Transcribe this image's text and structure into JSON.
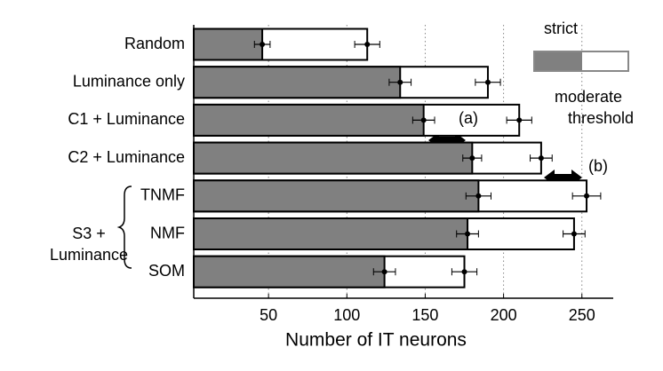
{
  "chart_data": {
    "type": "bar",
    "orientation": "horizontal",
    "xlabel": "Number of  IT neurons",
    "categories": [
      "Random",
      "Luminance only",
      "C1 + Luminance",
      "C2 + Luminance",
      "TNMF",
      "NMF",
      "SOM"
    ],
    "group_label": [
      "S3 +",
      "Luminance"
    ],
    "series": [
      {
        "name": "moderate threshold",
        "color": "#ffffff",
        "values": [
          113,
          190,
          210,
          224,
          253,
          245,
          175
        ],
        "errors": [
          8,
          8,
          8,
          7,
          9,
          7,
          8
        ]
      },
      {
        "name": "strict",
        "color": "#808080",
        "values": [
          46,
          134,
          149,
          180,
          184,
          177,
          124
        ],
        "errors": [
          5,
          7,
          7,
          6,
          8,
          7,
          7
        ]
      }
    ],
    "annotations": [
      "(a)",
      "(b)"
    ],
    "xlim": [
      0,
      270
    ],
    "xticks": [
      50,
      100,
      150,
      200,
      250
    ],
    "grid": true,
    "legend": "upper right"
  }
}
